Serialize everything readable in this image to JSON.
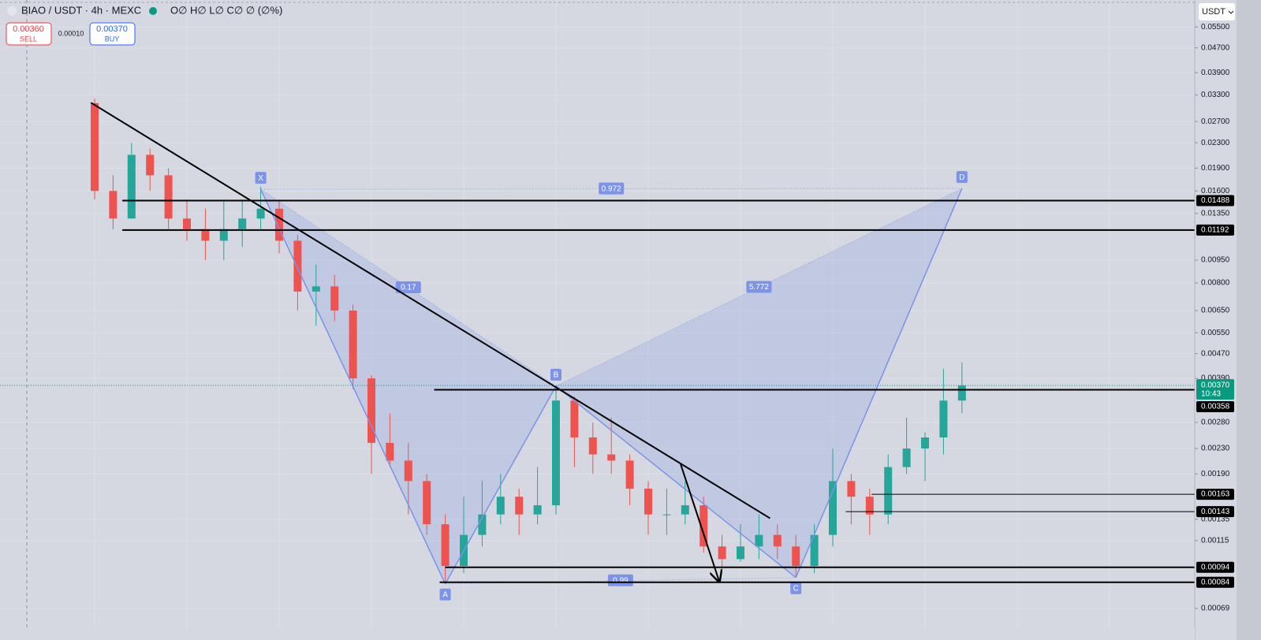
{
  "header": {
    "symbol": "BIAO / USDT · 4h · MEXC",
    "ohlc": "O∅ H∅ L∅ C∅ ∅ (∅%)"
  },
  "trade": {
    "sell_price": "0.00360",
    "sell_label": "SELL",
    "spread": "0.00010",
    "buy_price": "0.00370",
    "buy_label": "BUY"
  },
  "currency": "USDT",
  "chart_data": {
    "type": "candlestick",
    "log_scale": true,
    "grid": true,
    "ylim": [
      0.000598,
      0.0674
    ],
    "yticks": [
      {
        "value": 0.055,
        "label": "0.05500"
      },
      {
        "value": 0.047,
        "label": "0.04700"
      },
      {
        "value": 0.039,
        "label": "0.03900"
      },
      {
        "value": 0.033,
        "label": "0.03300"
      },
      {
        "value": 0.027,
        "label": "0.02700"
      },
      {
        "value": 0.023,
        "label": "0.02300"
      },
      {
        "value": 0.019,
        "label": "0.01900"
      },
      {
        "value": 0.016,
        "label": "0.01600"
      },
      {
        "value": 0.0135,
        "label": "0.01350"
      },
      {
        "value": 0.0095,
        "label": "0.00950"
      },
      {
        "value": 0.008,
        "label": "0.00800"
      },
      {
        "value": 0.0065,
        "label": "0.00650"
      },
      {
        "value": 0.0055,
        "label": "0.00550"
      },
      {
        "value": 0.0047,
        "label": "0.00470"
      },
      {
        "value": 0.0039,
        "label": "0.00390"
      },
      {
        "value": 0.0028,
        "label": "0.00280"
      },
      {
        "value": 0.0023,
        "label": "0.00230"
      },
      {
        "value": 0.0019,
        "label": "0.00190"
      },
      {
        "value": 0.00135,
        "label": "0.00135"
      },
      {
        "value": 0.00115,
        "label": "0.00115"
      },
      {
        "value": 0.00069,
        "label": "0.00069"
      }
    ],
    "up_color": "#26a69a",
    "down_color": "#ef5350",
    "candles": [
      [
        0.031,
        0.032,
        0.015,
        0.016
      ],
      [
        0.016,
        0.018,
        0.012,
        0.013
      ],
      [
        0.013,
        0.023,
        0.013,
        0.021
      ],
      [
        0.021,
        0.022,
        0.016,
        0.018
      ],
      [
        0.018,
        0.019,
        0.012,
        0.013
      ],
      [
        0.013,
        0.015,
        0.011,
        0.012
      ],
      [
        0.012,
        0.014,
        0.0095,
        0.011
      ],
      [
        0.011,
        0.015,
        0.0095,
        0.012
      ],
      [
        0.012,
        0.015,
        0.0105,
        0.013
      ],
      [
        0.013,
        0.0165,
        0.012,
        0.014
      ],
      [
        0.014,
        0.015,
        0.01,
        0.011
      ],
      [
        0.011,
        0.0115,
        0.0065,
        0.0075
      ],
      [
        0.0075,
        0.0092,
        0.0058,
        0.0078
      ],
      [
        0.0078,
        0.0085,
        0.006,
        0.0065
      ],
      [
        0.0065,
        0.0068,
        0.0036,
        0.0039
      ],
      [
        0.0039,
        0.004,
        0.0019,
        0.0024
      ],
      [
        0.0024,
        0.003,
        0.002,
        0.0021
      ],
      [
        0.0021,
        0.0024,
        0.0014,
        0.0018
      ],
      [
        0.0018,
        0.0019,
        0.0012,
        0.0013
      ],
      [
        0.0013,
        0.0014,
        0.00083,
        0.00095
      ],
      [
        0.00095,
        0.0016,
        0.0009,
        0.0012
      ],
      [
        0.0012,
        0.0018,
        0.0011,
        0.0014
      ],
      [
        0.0014,
        0.0019,
        0.0013,
        0.0016
      ],
      [
        0.0016,
        0.0017,
        0.0012,
        0.0014
      ],
      [
        0.0014,
        0.002,
        0.0013,
        0.0015
      ],
      [
        0.0015,
        0.0037,
        0.0014,
        0.0033
      ],
      [
        0.0033,
        0.0034,
        0.002,
        0.0025
      ],
      [
        0.0025,
        0.0028,
        0.0019,
        0.0022
      ],
      [
        0.0022,
        0.0029,
        0.0019,
        0.0021
      ],
      [
        0.0021,
        0.0022,
        0.0015,
        0.0017
      ],
      [
        0.0017,
        0.0018,
        0.0012,
        0.0014
      ],
      [
        0.0014,
        0.0017,
        0.0012,
        0.0014
      ],
      [
        0.0014,
        0.0018,
        0.0013,
        0.0015
      ],
      [
        0.0015,
        0.0016,
        0.00105,
        0.0011
      ],
      [
        0.0011,
        0.0012,
        0.00092,
        0.001
      ],
      [
        0.001,
        0.0013,
        0.00098,
        0.0011
      ],
      [
        0.0011,
        0.0014,
        0.001,
        0.0012
      ],
      [
        0.0012,
        0.0013,
        0.001,
        0.0011
      ],
      [
        0.0011,
        0.0012,
        0.00087,
        0.00095
      ],
      [
        0.00095,
        0.0013,
        0.0009,
        0.0012
      ],
      [
        0.0012,
        0.0023,
        0.0011,
        0.0018
      ],
      [
        0.0018,
        0.0019,
        0.0013,
        0.0016
      ],
      [
        0.0016,
        0.0017,
        0.0012,
        0.0014
      ],
      [
        0.0014,
        0.0022,
        0.0013,
        0.002
      ],
      [
        0.002,
        0.0029,
        0.0019,
        0.0023
      ],
      [
        0.0023,
        0.0026,
        0.0018,
        0.0025
      ],
      [
        0.0025,
        0.0042,
        0.0022,
        0.0033
      ],
      [
        0.0033,
        0.0044,
        0.003,
        0.0037
      ]
    ],
    "last_price": {
      "value": 0.0037,
      "label": "0.00370",
      "countdown": "10:43",
      "color": "#089981"
    },
    "levels": [
      {
        "value": 0.01488,
        "label": "0.01488",
        "from": 1.5
      },
      {
        "value": 0.01192,
        "label": "0.01192",
        "from": 1.5
      },
      {
        "value": 0.00358,
        "label": "0.00358",
        "from": 18.4
      },
      {
        "value": 0.00163,
        "label": "0.00163",
        "from": 42.1
      },
      {
        "value": 0.00143,
        "label": "0.00143",
        "from": 40.7
      },
      {
        "value": 0.00094,
        "label": "0.00094",
        "from": 19
      },
      {
        "value": 0.00084,
        "label": "0.00084",
        "from": 18.7
      }
    ],
    "pattern": {
      "color": "#7b93e8",
      "points": [
        {
          "name": "X",
          "bar": 9,
          "value": 0.0162
        },
        {
          "name": "A",
          "bar": 19,
          "value": 0.00083
        },
        {
          "name": "B",
          "bar": 25,
          "value": 0.00368
        },
        {
          "name": "C",
          "bar": 38,
          "value": 0.00087
        },
        {
          "name": "D",
          "bar": 47,
          "value": 0.0163
        }
      ],
      "ratios": [
        {
          "value": 0.972,
          "between": [
            0,
            4
          ]
        },
        {
          "value": 0.17,
          "between": [
            0,
            2
          ]
        },
        {
          "value": 5.772,
          "between": [
            2,
            4
          ]
        },
        {
          "value": 0.99,
          "between": [
            1,
            3
          ]
        }
      ]
    },
    "trendlines": [
      {
        "from": [
          -0.2,
          0.0311
        ],
        "to": [
          36.6,
          0.00136
        ],
        "arrow": false
      },
      {
        "from": [
          31.75,
          0.00205
        ],
        "to": [
          33.85,
          0.000844
        ],
        "arrow": true
      }
    ]
  }
}
